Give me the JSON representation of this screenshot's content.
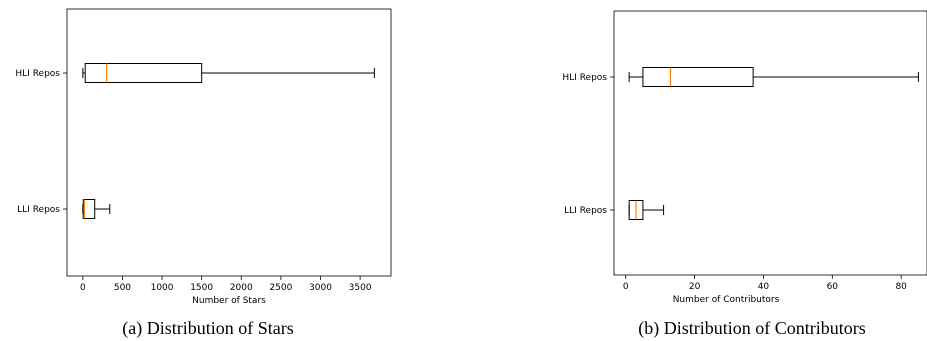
{
  "chart_data": [
    {
      "type": "boxplot",
      "orientation": "horizontal",
      "caption": "(a) Distribution of Stars",
      "xlabel": "Number of Stars",
      "ylabel": "",
      "xlim": [
        -200,
        3890
      ],
      "xticks": [
        0,
        500,
        1000,
        1500,
        2000,
        2500,
        3000,
        3500
      ],
      "xtick_labels": [
        "0",
        "500",
        "1000",
        "1500",
        "2000",
        "2500",
        "3000",
        "3500"
      ],
      "grid": false,
      "series": [
        {
          "category": "HLI Repos",
          "whisker_low": 0,
          "q1": 30,
          "median": 300,
          "q3": 1500,
          "whisker_high": 3680
        },
        {
          "category": "LLI Repos",
          "whisker_low": 0,
          "q1": 5,
          "median": 20,
          "q3": 150,
          "whisker_high": 340
        }
      ]
    },
    {
      "type": "boxplot",
      "orientation": "horizontal",
      "caption": "(b) Distribution of Contributors",
      "xlabel": "Number of Contributors",
      "ylabel": "",
      "xlim": [
        -3.4,
        87.5
      ],
      "xticks": [
        0,
        20,
        40,
        60,
        80
      ],
      "xtick_labels": [
        "0",
        "20",
        "40",
        "60",
        "80"
      ],
      "grid": false,
      "series": [
        {
          "category": "HLI Repos",
          "whisker_low": 1,
          "q1": 5,
          "median": 13,
          "q3": 37,
          "whisker_high": 85
        },
        {
          "category": "LLI Repos",
          "whisker_low": 1,
          "q1": 1,
          "median": 3,
          "q3": 5,
          "whisker_high": 11
        }
      ]
    }
  ],
  "colors": {
    "median": "#ff7f0e",
    "box": "#000000"
  }
}
